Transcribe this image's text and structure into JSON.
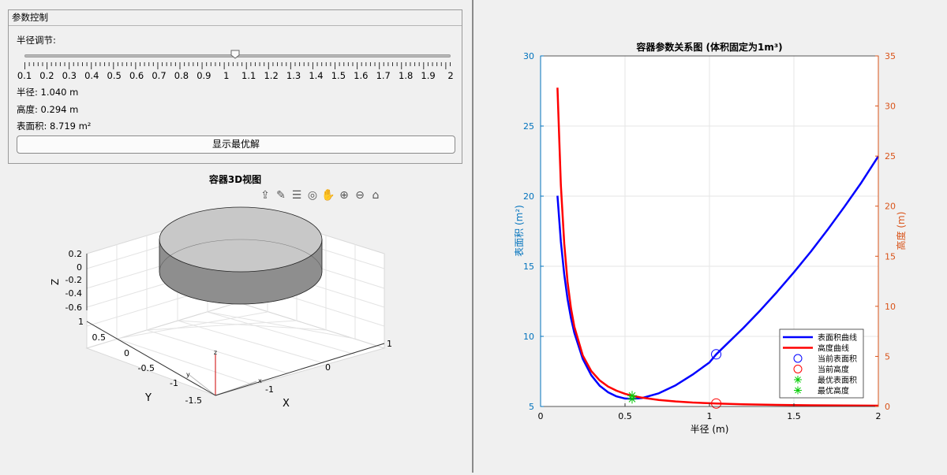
{
  "control_panel": {
    "title": "参数控制",
    "slider_label": "半径调节:",
    "slider": {
      "min": 0.1,
      "max": 2,
      "value": 1.04
    },
    "tick_labels": [
      "0.1",
      "0.2",
      "0.3",
      "0.4",
      "0.5",
      "0.6",
      "0.7",
      "0.8",
      "0.9",
      "1",
      "1.1",
      "1.2",
      "1.3",
      "1.4",
      "1.5",
      "1.6",
      "1.7",
      "1.8",
      "1.9",
      "2"
    ],
    "radius_text": "半径: 1.040 m",
    "height_text": "高度: 0.294 m",
    "area_text": "表面积: 8.719 m²",
    "optimal_button": "显示最优解"
  },
  "view3d": {
    "title": "容器3D视图",
    "toolbar_icons": [
      "export-icon",
      "brush-icon",
      "legend-icon",
      "rotate-3d-icon",
      "pan-icon",
      "zoom-in-icon",
      "zoom-out-icon",
      "home-icon"
    ],
    "z_ticks": [
      "0.2",
      "0",
      "-0.2",
      "-0.4",
      "-0.6"
    ],
    "y_ticks": [
      "1",
      "0.5",
      "0",
      "-0.5",
      "-1",
      "-1.5"
    ],
    "x_ticks": [
      "1",
      "0",
      "-1"
    ],
    "z_label": "Z",
    "y_label": "Y",
    "x_label": "X",
    "mini_axes": {
      "z": "z",
      "y": "y",
      "x": "x"
    }
  },
  "chart_data": {
    "type": "line",
    "title": "容器参数关系图 (体积固定为1m³)",
    "xlabel": "半径 (m)",
    "ylabel_left": "表面积 (m²)",
    "ylabel_right": "高度 (m)",
    "xlim": [
      0,
      2
    ],
    "ylim_left": [
      5,
      30
    ],
    "ylim_right": [
      0,
      35
    ],
    "x_ticks": [
      "0",
      "0.5",
      "1",
      "1.5",
      "2"
    ],
    "y_left_ticks": [
      "5",
      "10",
      "15",
      "20",
      "25",
      "30"
    ],
    "y_right_ticks": [
      "0",
      "5",
      "10",
      "15",
      "20",
      "25",
      "30",
      "35"
    ],
    "grid": true,
    "legend_position": "bottom-right",
    "series": [
      {
        "name": "表面积曲线",
        "axis": "left",
        "color": "#0000ff",
        "style": "line",
        "x": [
          0.1,
          0.12,
          0.14,
          0.16,
          0.18,
          0.2,
          0.25,
          0.3,
          0.35,
          0.4,
          0.45,
          0.5,
          0.542,
          0.6,
          0.7,
          0.8,
          0.9,
          1.0,
          1.04,
          1.1,
          1.2,
          1.3,
          1.4,
          1.5,
          1.6,
          1.7,
          1.8,
          1.9,
          2.0
        ],
        "y": [
          20.03,
          16.76,
          14.41,
          12.66,
          11.31,
          10.25,
          8.39,
          7.23,
          6.48,
          6.01,
          5.72,
          5.57,
          5.54,
          5.6,
          5.94,
          6.51,
          7.27,
          8.14,
          8.72,
          9.42,
          10.59,
          11.84,
          13.17,
          14.57,
          16.04,
          17.61,
          19.26,
          20.98,
          22.85
        ]
      },
      {
        "name": "高度曲线",
        "axis": "right",
        "color": "#ff0000",
        "style": "line",
        "x": [
          0.1,
          0.12,
          0.14,
          0.16,
          0.18,
          0.2,
          0.25,
          0.3,
          0.35,
          0.4,
          0.45,
          0.5,
          0.542,
          0.6,
          0.7,
          0.8,
          0.9,
          1.0,
          1.04,
          1.2,
          1.4,
          1.6,
          1.8,
          2.0
        ],
        "y": [
          31.83,
          22.1,
          16.24,
          12.43,
          9.82,
          7.96,
          5.09,
          3.54,
          2.6,
          1.99,
          1.57,
          1.27,
          1.08,
          0.88,
          0.65,
          0.5,
          0.39,
          0.32,
          0.294,
          0.22,
          0.16,
          0.12,
          0.1,
          0.08
        ]
      },
      {
        "name": "当前表面积",
        "axis": "left",
        "color": "#0000ff",
        "style": "circle",
        "x": [
          1.04
        ],
        "y": [
          8.719
        ]
      },
      {
        "name": "当前高度",
        "axis": "right",
        "color": "#ff0000",
        "style": "circle",
        "x": [
          1.04
        ],
        "y": [
          0.294
        ]
      },
      {
        "name": "最优表面积",
        "axis": "left",
        "color": "#00cc00",
        "style": "star",
        "x": [
          0.542
        ],
        "y": [
          5.54
        ]
      },
      {
        "name": "最优高度",
        "axis": "right",
        "color": "#00cc00",
        "style": "star",
        "x": [
          0.542
        ],
        "y": [
          1.08
        ]
      }
    ],
    "left_axis_color": "#0072bd",
    "right_axis_color": "#d95319"
  }
}
